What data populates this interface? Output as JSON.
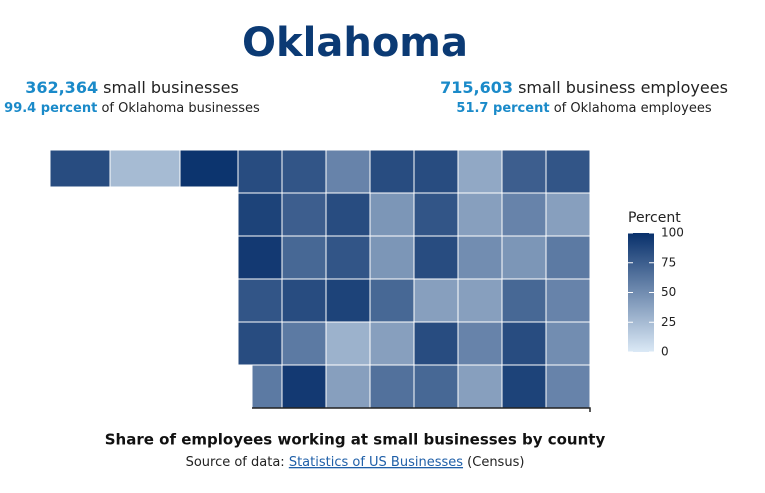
{
  "header": {
    "title": "Oklahoma"
  },
  "stats": {
    "left": {
      "count": "362,364",
      "count_text": "small businesses",
      "share": "99.4 percent",
      "share_text": "of Oklahoma businesses"
    },
    "right": {
      "count": "715,603",
      "count_text": "small business employees",
      "share": "51.7 percent",
      "share_text": "of Oklahoma employees"
    }
  },
  "chart_data": {
    "type": "choropleth",
    "panhandle_values": [
      85,
      25,
      98
    ],
    "values": [
      85,
      80,
      55,
      85,
      85,
      35,
      75,
      80,
      90,
      75,
      85,
      45,
      80,
      40,
      55,
      40,
      95,
      70,
      80,
      45,
      85,
      50,
      45,
      60,
      80,
      85,
      90,
      70,
      40,
      40,
      70,
      55,
      85,
      60,
      30,
      40,
      85,
      55,
      85,
      50,
      60,
      95,
      40,
      65,
      70,
      40,
      90,
      55
    ],
    "legend_title": "Percent",
    "colorbar_ticks": [
      0,
      25,
      50,
      75,
      100
    ],
    "colorbar_lim": [
      0,
      100
    ],
    "color_range": [
      "#dbe9f6",
      "#08306b"
    ]
  },
  "footer": {
    "caption": "Share of employees working at small businesses by county",
    "source_prefix": "Source of data:",
    "source_link": "Statistics of US Businesses",
    "source_suffix": "(Census)"
  }
}
